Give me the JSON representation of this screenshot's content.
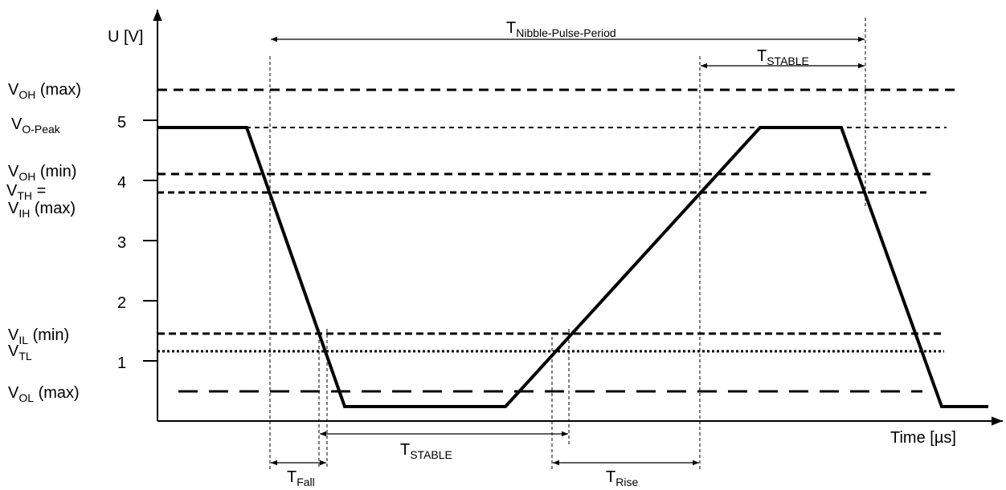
{
  "axes": {
    "y_label": "U [V]",
    "x_label": "Time [µs]",
    "y_ticks": [
      "1",
      "2",
      "3",
      "4",
      "5"
    ]
  },
  "levels": {
    "voh_max": {
      "main": "V",
      "sub": "OH",
      "suffix": " (max)"
    },
    "vo_peak": {
      "main": "V",
      "sub": "O-Peak"
    },
    "voh_min": {
      "main": "V",
      "sub": "OH",
      "suffix": " (min)"
    },
    "vth": {
      "main": "V",
      "sub": "TH",
      "suffix": " ="
    },
    "vih_max": {
      "main": "V",
      "sub": "IH",
      "suffix": " (max)"
    },
    "vil_min": {
      "main": "V",
      "sub": "IL",
      "suffix": " (min)"
    },
    "vtl": {
      "main": "V",
      "sub": "TL"
    },
    "vol_max": {
      "main": "V",
      "sub": "OL",
      "suffix": " (max)"
    }
  },
  "timings": {
    "period": {
      "main": "T",
      "sub": "Nibble-Pulse-Period"
    },
    "stable_top": {
      "main": "T",
      "sub": "STABLE"
    },
    "stable_bottom": {
      "main": "T",
      "sub": "STABLE"
    },
    "fall": {
      "main": "T",
      "sub": "Fall"
    },
    "rise": {
      "main": "T",
      "sub": "Rise"
    }
  }
}
